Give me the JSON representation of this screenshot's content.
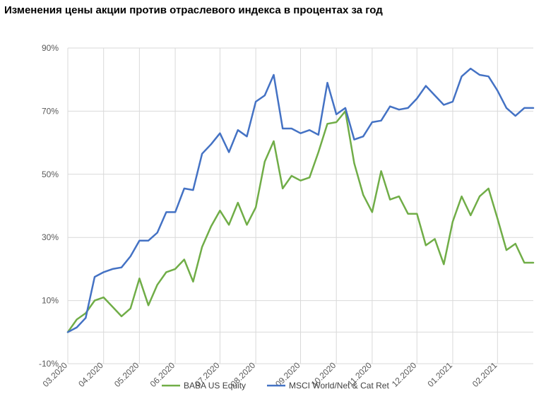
{
  "title": "Изменения цены акции против отраслевого индекса в процентах за год",
  "chart_data": {
    "type": "line",
    "title": "Изменения цены акции против отраслевого индекса в процентах за год",
    "xlabel": "",
    "ylabel": "",
    "ylim": [
      -10,
      90
    ],
    "y_ticks": [
      "-10%",
      "10%",
      "30%",
      "50%",
      "70%",
      "90%"
    ],
    "x_ticks": [
      "03.2020",
      "04.2020",
      "05.2020",
      "06.2020",
      "07.2020",
      "08.2020",
      "09.2020",
      "10.2020",
      "11.2020",
      "12.2020",
      "01.2021",
      "02.2021"
    ],
    "grid": true,
    "legend_position": "bottom",
    "series": [
      {
        "name": "BABA US  Equity",
        "color": "#70AD47",
        "values": [
          0,
          4,
          6,
          10,
          11,
          8,
          5,
          7.5,
          17,
          8.5,
          15,
          19,
          20,
          23,
          16,
          27,
          33.5,
          38.5,
          34,
          41,
          34,
          39.5,
          54,
          60.5,
          45.5,
          49.5,
          48,
          49,
          57,
          66,
          66.5,
          70,
          53.5,
          43.5,
          38,
          51,
          42,
          43,
          37.5,
          37.5,
          27.5,
          29.5,
          21.5,
          35,
          43,
          37,
          43,
          45.5,
          36,
          26,
          28,
          22,
          22
        ]
      },
      {
        "name": "MSCI World/Net & Cat Ret",
        "color": "#4472C4",
        "values": [
          0,
          1.5,
          4.5,
          17.5,
          19,
          20,
          20.5,
          24,
          29,
          29,
          31.5,
          38,
          38,
          45.5,
          45,
          56.5,
          59.5,
          63,
          57,
          64,
          62,
          73,
          75,
          81.5,
          64.5,
          64.5,
          63,
          64,
          62.5,
          79,
          69,
          71,
          61,
          62,
          66.5,
          67,
          71.5,
          70.5,
          71,
          74,
          78,
          75,
          72,
          73,
          81,
          83.5,
          81.5,
          81,
          76.5,
          71,
          68.5,
          71,
          71
        ]
      }
    ]
  }
}
